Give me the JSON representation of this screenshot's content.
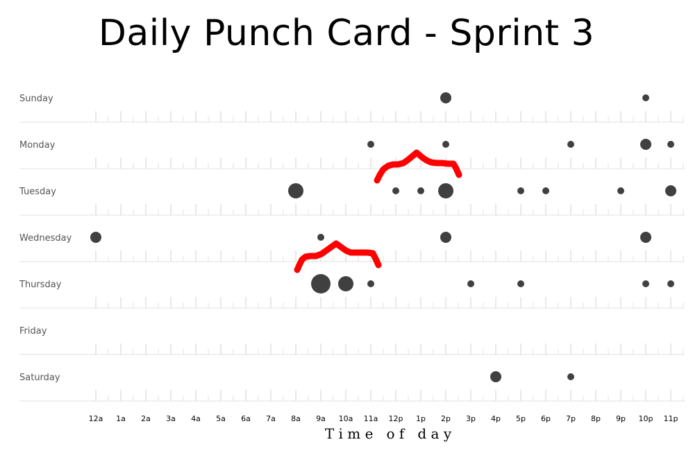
{
  "chart_data": {
    "type": "scatter",
    "title": "Daily Punch Card - Sprint 3",
    "xlabel": "T i m e   o f   d a y",
    "ylabel": "",
    "days": [
      "Sunday",
      "Monday",
      "Tuesday",
      "Wednesday",
      "Thursday",
      "Friday",
      "Saturday"
    ],
    "hours": [
      "12a",
      "1a",
      "2a",
      "3a",
      "4a",
      "5a",
      "6a",
      "7a",
      "8a",
      "9a",
      "10a",
      "11a",
      "12p",
      "1p",
      "2p",
      "3p",
      "4p",
      "5p",
      "6p",
      "7p",
      "8p",
      "9p",
      "10p",
      "11p"
    ],
    "points": [
      {
        "day": "Sunday",
        "hour": 14,
        "value": 2
      },
      {
        "day": "Sunday",
        "hour": 22,
        "value": 1
      },
      {
        "day": "Monday",
        "hour": 11,
        "value": 1
      },
      {
        "day": "Monday",
        "hour": 14,
        "value": 1
      },
      {
        "day": "Monday",
        "hour": 19,
        "value": 1
      },
      {
        "day": "Monday",
        "hour": 22,
        "value": 2
      },
      {
        "day": "Monday",
        "hour": 23,
        "value": 1
      },
      {
        "day": "Tuesday",
        "hour": 8,
        "value": 3
      },
      {
        "day": "Tuesday",
        "hour": 12,
        "value": 1
      },
      {
        "day": "Tuesday",
        "hour": 13,
        "value": 1
      },
      {
        "day": "Tuesday",
        "hour": 14,
        "value": 3
      },
      {
        "day": "Tuesday",
        "hour": 17,
        "value": 1
      },
      {
        "day": "Tuesday",
        "hour": 18,
        "value": 1
      },
      {
        "day": "Tuesday",
        "hour": 21,
        "value": 1
      },
      {
        "day": "Tuesday",
        "hour": 23,
        "value": 2
      },
      {
        "day": "Wednesday",
        "hour": 0,
        "value": 2
      },
      {
        "day": "Wednesday",
        "hour": 9,
        "value": 1
      },
      {
        "day": "Wednesday",
        "hour": 14,
        "value": 2
      },
      {
        "day": "Wednesday",
        "hour": 22,
        "value": 2
      },
      {
        "day": "Thursday",
        "hour": 9,
        "value": 4
      },
      {
        "day": "Thursday",
        "hour": 10,
        "value": 3
      },
      {
        "day": "Thursday",
        "hour": 11,
        "value": 1
      },
      {
        "day": "Thursday",
        "hour": 15,
        "value": 1
      },
      {
        "day": "Thursday",
        "hour": 17,
        "value": 1
      },
      {
        "day": "Thursday",
        "hour": 22,
        "value": 1
      },
      {
        "day": "Thursday",
        "hour": 23,
        "value": 1
      },
      {
        "day": "Saturday",
        "hour": 16,
        "value": 2
      },
      {
        "day": "Saturday",
        "hour": 19,
        "value": 1
      }
    ],
    "dot_color": "#404040",
    "annotation_color": "#ff0000",
    "grid": true
  }
}
